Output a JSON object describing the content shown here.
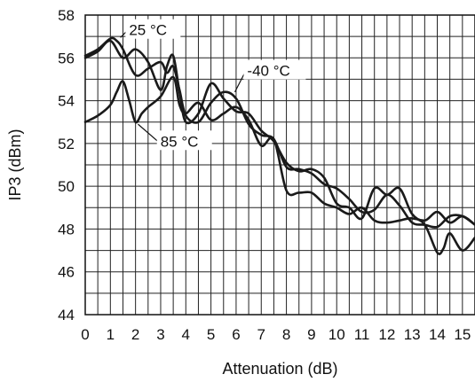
{
  "chart_data": {
    "type": "line",
    "xlabel": "Attenuation (dB)",
    "ylabel": "IP3 (dBm)",
    "xlim": [
      0,
      15.5
    ],
    "ylim": [
      44,
      58
    ],
    "xticks": [
      0,
      1,
      2,
      3,
      4,
      5,
      6,
      7,
      8,
      9,
      10,
      11,
      12,
      13,
      14,
      15
    ],
    "yticks": [
      44,
      46,
      48,
      50,
      52,
      54,
      56,
      58
    ],
    "grid": true,
    "legend": "none",
    "annotations": [
      {
        "text": "25 °C",
        "series": "25 °C"
      },
      {
        "text": "-40 °C",
        "series": "-40 °C"
      },
      {
        "text": "85 °C",
        "series": "85 °C"
      }
    ],
    "series": [
      {
        "name": "25 °C",
        "x": [
          0,
          0.5,
          1,
          1.25,
          1.5,
          2,
          2.5,
          3,
          3.25,
          3.5,
          3.75,
          4,
          4.5,
          5,
          5.5,
          6,
          6.5,
          7,
          7.5,
          8,
          8.5,
          9,
          9.5,
          10,
          10.5,
          11,
          11.5,
          12,
          12.5,
          13,
          13.5,
          14,
          14.5,
          15,
          15.5
        ],
        "y": [
          56.1,
          56.4,
          56.9,
          56.8,
          56.4,
          55.2,
          55.5,
          55.8,
          55.3,
          55.6,
          54.5,
          53.3,
          53.0,
          53.9,
          54.4,
          54.1,
          52.9,
          52.4,
          52.2,
          50.9,
          50.8,
          50.6,
          50.1,
          49.9,
          49.4,
          48.8,
          48.9,
          49.6,
          49.1,
          48.3,
          48.2,
          48.1,
          48.6,
          48.6,
          48.2
        ]
      },
      {
        "name": "-40 °C",
        "x": [
          0,
          0.5,
          1,
          1.5,
          2,
          2.5,
          3,
          3.25,
          3.5,
          3.75,
          4,
          4.5,
          5,
          5.5,
          6,
          6.5,
          7,
          7.5,
          8,
          8.5,
          9,
          9.5,
          10,
          10.5,
          11,
          11.5,
          12,
          12.5,
          13,
          13.5,
          14,
          14.5,
          15,
          15.5
        ],
        "y": [
          56.0,
          56.3,
          56.8,
          56.0,
          56.4,
          55.8,
          54.5,
          55.6,
          56.1,
          54.4,
          53.0,
          53.4,
          54.8,
          54.1,
          53.5,
          53.4,
          52.6,
          52.1,
          51.1,
          50.7,
          50.8,
          50.4,
          49.2,
          49.0,
          48.5,
          49.9,
          49.6,
          49.9,
          48.7,
          48.4,
          48.8,
          48.3,
          48.6,
          48.2
        ]
      },
      {
        "name": "85 °C",
        "x": [
          0,
          0.5,
          1,
          1.25,
          1.5,
          1.75,
          2,
          2.25,
          2.5,
          3,
          3.5,
          3.75,
          4,
          4.5,
          5,
          5.5,
          6,
          6.5,
          7,
          7.5,
          8,
          8.5,
          9,
          9.5,
          10,
          10.5,
          11,
          11.5,
          12,
          12.5,
          13,
          13.5,
          14,
          14.25,
          14.5,
          15,
          15.5
        ],
        "y": [
          53.0,
          53.3,
          53.8,
          54.4,
          54.9,
          54.0,
          53.0,
          53.4,
          53.7,
          54.2,
          55.1,
          53.8,
          53.4,
          53.9,
          53.1,
          53.4,
          53.7,
          53.1,
          51.9,
          52.2,
          49.8,
          49.7,
          49.7,
          49.2,
          49.0,
          48.7,
          49.0,
          48.4,
          48.3,
          48.4,
          48.5,
          48.2,
          46.9,
          47.1,
          47.8,
          47.0,
          47.6
        ]
      }
    ]
  }
}
